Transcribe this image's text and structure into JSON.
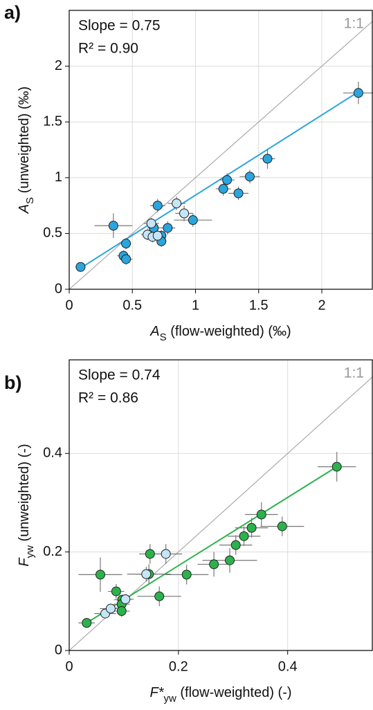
{
  "chart_data": [
    {
      "type": "scatter",
      "panel_label": "a)",
      "annotations": [
        "Slope = 0.75",
        "R² = 0.90"
      ],
      "identity_label": "1:1",
      "xlabel": [
        "A",
        "S",
        " (flow-weighted) (‰)"
      ],
      "ylabel": [
        "A",
        "S",
        " (unweighted) (‰)"
      ],
      "xlim": [
        0,
        2.4
      ],
      "ylim": [
        0,
        2.5
      ],
      "xticks": [
        0,
        0.5,
        1,
        1.5,
        2
      ],
      "yticks": [
        0,
        0.5,
        1,
        1.5,
        2
      ],
      "grid": true,
      "series": [
        {
          "color": "#2aa5de",
          "x": [
            0.09,
            0.35,
            0.45,
            0.43,
            0.45,
            0.7,
            0.67,
            0.73,
            0.73,
            0.78,
            0.98,
            1.22,
            1.25,
            1.34,
            1.43,
            1.57,
            2.29
          ],
          "y": [
            0.2,
            0.57,
            0.41,
            0.3,
            0.27,
            0.75,
            0.55,
            0.48,
            0.43,
            0.55,
            0.62,
            0.9,
            0.98,
            0.86,
            1.01,
            1.17,
            1.76
          ],
          "xerr": [
            0.04,
            0.15,
            0.04,
            0.05,
            0.05,
            0.06,
            0.05,
            0.04,
            0.04,
            0.06,
            0.15,
            0.06,
            0.06,
            0.08,
            0.08,
            0.06,
            0.12
          ],
          "yerr": [
            0.03,
            0.11,
            0.05,
            0.05,
            0.05,
            0.06,
            0.05,
            0.05,
            0.05,
            0.06,
            0.06,
            0.06,
            0.06,
            0.06,
            0.06,
            0.09,
            0.1
          ]
        },
        {
          "color": "#c5e5f8",
          "x": [
            0.65,
            0.62,
            0.66,
            0.7,
            0.85,
            0.91
          ],
          "y": [
            0.59,
            0.49,
            0.47,
            0.48,
            0.77,
            0.68
          ],
          "xerr": [
            0.06,
            0.05,
            0.05,
            0.05,
            0.07,
            0.07
          ],
          "yerr": [
            0.05,
            0.05,
            0.05,
            0.05,
            0.06,
            0.07
          ]
        }
      ],
      "fit": {
        "color": "#2aa5de",
        "x": [
          0.09,
          2.29
        ],
        "y": [
          0.19,
          1.77
        ]
      }
    },
    {
      "type": "scatter",
      "panel_label": "b)",
      "annotations": [
        "Slope = 0.74",
        "R² = 0.86"
      ],
      "identity_label": "1:1",
      "xlabel": [
        "F*",
        "yw",
        " (flow-weighted) (-)"
      ],
      "ylabel": [
        "F",
        "yw",
        " (unweighted) (-)"
      ],
      "xlim": [
        0,
        0.555
      ],
      "ylim": [
        0,
        0.59
      ],
      "xticks": [
        0,
        0.2,
        0.4
      ],
      "yticks": [
        0,
        0.2,
        0.4
      ],
      "grid": true,
      "series": [
        {
          "color": "#2bb24c",
          "x": [
            0.032,
            0.057,
            0.086,
            0.097,
            0.096,
            0.096,
            0.146,
            0.148,
            0.165,
            0.215,
            0.265,
            0.294,
            0.305,
            0.32,
            0.334,
            0.352,
            0.39,
            0.49
          ],
          "y": [
            0.056,
            0.154,
            0.12,
            0.103,
            0.094,
            0.08,
            0.155,
            0.196,
            0.11,
            0.154,
            0.175,
            0.183,
            0.214,
            0.232,
            0.249,
            0.276,
            0.252,
            0.373
          ],
          "xerr": [
            0.015,
            0.04,
            0.015,
            0.015,
            0.015,
            0.015,
            0.04,
            0.02,
            0.04,
            0.04,
            0.03,
            0.05,
            0.03,
            0.03,
            0.03,
            0.03,
            0.04,
            0.035
          ],
          "yerr": [
            0.008,
            0.035,
            0.015,
            0.01,
            0.01,
            0.012,
            0.02,
            0.02,
            0.02,
            0.02,
            0.025,
            0.025,
            0.02,
            0.02,
            0.02,
            0.025,
            0.02,
            0.03
          ]
        },
        {
          "color": "#c5e5f8",
          "x": [
            0.066,
            0.076,
            0.103,
            0.141,
            0.177
          ],
          "y": [
            0.075,
            0.085,
            0.104,
            0.155,
            0.196
          ],
          "xerr": [
            0.02,
            0.02,
            0.015,
            0.02,
            0.03
          ],
          "yerr": [
            0.01,
            0.01,
            0.01,
            0.015,
            0.02
          ]
        }
      ],
      "fit": {
        "color": "#2bb24c",
        "x": [
          0.032,
          0.49
        ],
        "y": [
          0.056,
          0.373
        ]
      }
    }
  ]
}
